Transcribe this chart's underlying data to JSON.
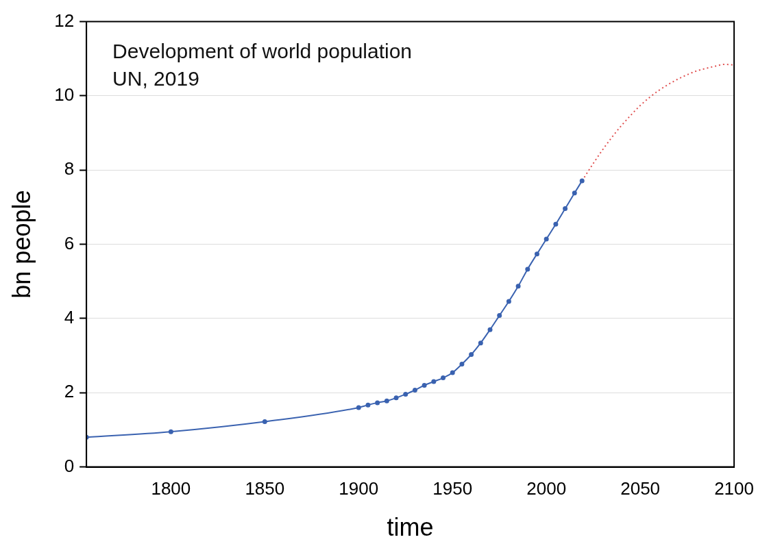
{
  "chart_data": {
    "type": "line",
    "title": "Development of world population",
    "annotations": [
      "UN, 2019"
    ],
    "xlabel": "time",
    "ylabel": "bn people",
    "xlim": [
      1755,
      2100
    ],
    "xticks": [
      1800,
      1850,
      1900,
      1950,
      2000,
      2050,
      2100
    ],
    "ylim": [
      0,
      12
    ],
    "yticks": [
      0,
      2,
      4,
      6,
      8,
      10,
      12
    ],
    "grid": "y",
    "legend": false,
    "series": [
      {
        "color": "#3a62b0",
        "marker": "circle",
        "line_style": "solid",
        "x": [
          1755,
          1800,
          1850,
          1900,
          1905,
          1910,
          1915,
          1920,
          1925,
          1930,
          1935,
          1940,
          1945,
          1950,
          1955,
          1960,
          1965,
          1970,
          1975,
          1980,
          1985,
          1990,
          1995,
          2000,
          2005,
          2010,
          2015,
          2019
        ],
        "values": [
          0.8,
          0.95,
          1.22,
          1.6,
          1.67,
          1.73,
          1.78,
          1.86,
          1.96,
          2.07,
          2.2,
          2.3,
          2.4,
          2.54,
          2.77,
          3.03,
          3.34,
          3.7,
          4.08,
          4.46,
          4.87,
          5.33,
          5.74,
          6.14,
          6.54,
          6.96,
          7.38,
          7.71
        ]
      },
      {
        "color": "#e05050",
        "marker": "none",
        "line_style": "dotted",
        "x": [
          2019,
          2025,
          2030,
          2035,
          2040,
          2045,
          2050,
          2055,
          2060,
          2065,
          2070,
          2075,
          2080,
          2085,
          2090,
          2095,
          2100
        ],
        "values": [
          7.71,
          8.18,
          8.55,
          8.89,
          9.2,
          9.48,
          9.74,
          9.96,
          10.15,
          10.31,
          10.45,
          10.57,
          10.67,
          10.74,
          10.8,
          10.85,
          10.83
        ]
      }
    ]
  }
}
